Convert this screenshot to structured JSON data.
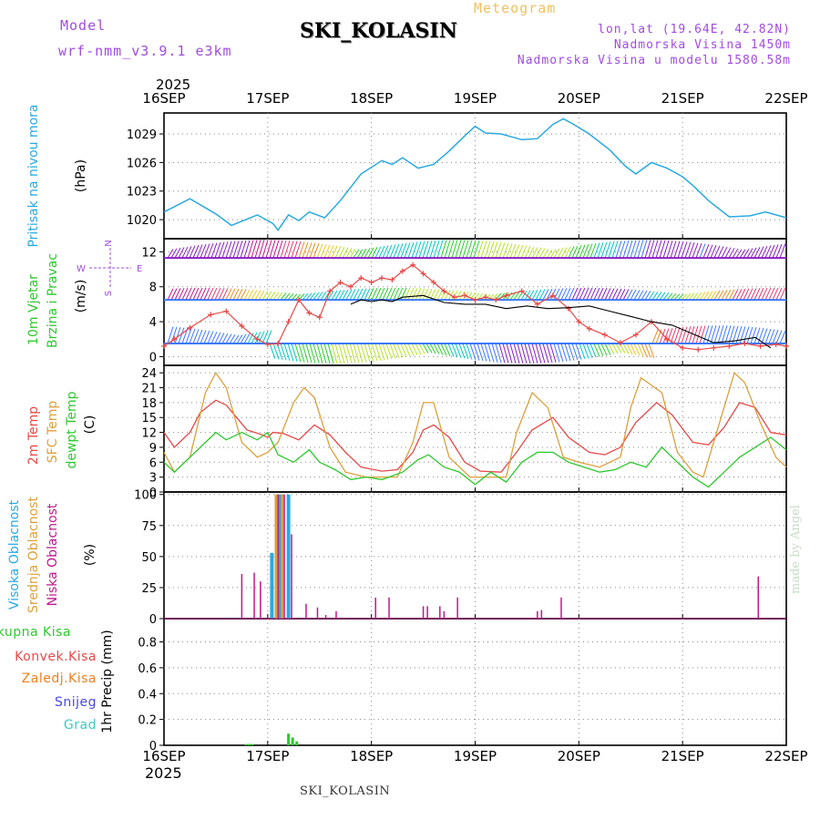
{
  "header": {
    "model_label": "Model",
    "model_name": "wrf-nmm_v3.9.1 e3km",
    "station": "SKI_KOLASIN",
    "product": "Meteogram",
    "coords": "lon,lat (19.64E, 42.82N)",
    "elevation": "Nadmorska Visina 1450m",
    "model_elevation": "Nadmorska Visina u modelu 1580.58m"
  },
  "footer": {
    "station": "SKI_KOLASIN",
    "year": "2025"
  },
  "top_axis_year": "2025",
  "credit": "made by Angel",
  "colors": {
    "pressure": "#2aa9e0",
    "wind_speed": "#e84848",
    "gust": "#000000",
    "t2m": "#e84848",
    "sfc": "#dca03c",
    "dewpt": "#2ec82e",
    "high_cloud": "#2aa9e0",
    "mid_cloud": "#dca03c",
    "low_cloud": "#c0188c",
    "total_precip": "#2ec82e",
    "conv_precip": "#e84848",
    "frozen": "#f08020",
    "snow": "#4848e0",
    "graupel": "#40c8c8",
    "axis_label": "#000000"
  },
  "chart_data": [
    {
      "type": "line",
      "panel": "pressure",
      "ylabel": "(hPa)",
      "side_labels": [
        "Pritisak na nivou mora"
      ],
      "ylim": [
        1018,
        1031.2
      ],
      "yticks": [
        1020,
        1023,
        1026,
        1029
      ],
      "x_categories": [
        "16SEP",
        "17SEP",
        "18SEP",
        "19SEP",
        "20SEP",
        "21SEP",
        "22SEP"
      ],
      "grid": true,
      "series": [
        {
          "name": "Pritisak na nivou mora",
          "x_days": [
            0,
            0.25,
            0.5,
            0.65,
            0.9,
            1.05,
            1.1,
            1.2,
            1.3,
            1.4,
            1.55,
            1.7,
            1.9,
            2.1,
            2.2,
            2.3,
            2.45,
            2.6,
            2.75,
            2.9,
            3.0,
            3.1,
            3.25,
            3.45,
            3.6,
            3.75,
            3.85,
            3.95,
            4.1,
            4.3,
            4.45,
            4.55,
            4.7,
            4.85,
            5.0,
            5.1,
            5.25,
            5.45,
            5.65,
            5.8,
            6.0
          ],
          "values": [
            1020.8,
            1022.2,
            1020.6,
            1019.4,
            1020.5,
            1019.6,
            1018.9,
            1020.5,
            1019.9,
            1020.8,
            1020.2,
            1022.0,
            1024.8,
            1026.2,
            1025.8,
            1026.5,
            1025.4,
            1025.8,
            1027.2,
            1028.8,
            1029.8,
            1029.1,
            1029.0,
            1028.4,
            1028.5,
            1030.0,
            1030.6,
            1030.0,
            1029.0,
            1027.3,
            1025.6,
            1024.8,
            1026.0,
            1025.4,
            1024.5,
            1023.6,
            1022.0,
            1020.3,
            1020.4,
            1020.8,
            1020.2
          ]
        }
      ]
    },
    {
      "type": "line",
      "panel": "wind",
      "ylabel": "(m/s)",
      "side_labels": [
        "10m Vjetar",
        "Brzina i Pravac"
      ],
      "compass_labels": {
        "n": "N",
        "s": "S",
        "w": "W",
        "e": "E",
        "top": "N",
        "bottom": "S"
      },
      "ylim": [
        -1,
        13.5
      ],
      "yticks": [
        0,
        4,
        8,
        12
      ],
      "grid": true,
      "series": [
        {
          "name": "Brzina vjetra",
          "x_days": [
            0,
            0.1,
            0.25,
            0.45,
            0.6,
            0.75,
            0.9,
            1.0,
            1.1,
            1.2,
            1.3,
            1.4,
            1.5,
            1.6,
            1.7,
            1.8,
            1.9,
            2.0,
            2.1,
            2.2,
            2.3,
            2.4,
            2.5,
            2.6,
            2.7,
            2.8,
            2.9,
            3.0,
            3.1,
            3.2,
            3.3,
            3.45,
            3.6,
            3.75,
            3.9,
            4.0,
            4.1,
            4.25,
            4.4,
            4.55,
            4.7,
            4.85,
            5.0,
            5.15,
            5.3,
            5.45,
            5.6,
            5.75,
            5.9,
            6.0
          ],
          "values": [
            1.2,
            2.0,
            3.3,
            4.8,
            5.2,
            3.5,
            2.0,
            1.4,
            1.5,
            4.0,
            6.5,
            5.0,
            4.5,
            7.5,
            8.5,
            8.0,
            9.0,
            8.5,
            9.0,
            8.8,
            9.8,
            10.5,
            9.5,
            8.5,
            7.5,
            6.8,
            7.0,
            6.5,
            6.8,
            6.5,
            7.0,
            7.5,
            6.0,
            7.0,
            5.5,
            4.0,
            3.2,
            2.5,
            1.6,
            2.5,
            4.0,
            2.0,
            1.0,
            0.8,
            1.0,
            1.2,
            1.5,
            1.2,
            1.4,
            1.2
          ]
        },
        {
          "name": "Udari vjetra",
          "x_days": [
            1.8,
            1.9,
            2.0,
            2.1,
            2.2,
            2.3,
            2.5,
            2.7,
            2.9,
            3.1,
            3.3,
            3.5,
            3.7,
            3.9,
            4.1,
            4.3,
            4.5,
            4.7,
            4.9,
            5.1,
            5.3,
            5.5,
            5.7,
            5.85
          ],
          "values": [
            6.0,
            6.5,
            6.3,
            6.5,
            6.3,
            6.8,
            7.0,
            6.2,
            6.0,
            6.0,
            5.5,
            5.8,
            5.5,
            5.6,
            5.8,
            5.2,
            4.6,
            4.0,
            3.6,
            2.6,
            1.6,
            1.8,
            2.2,
            1.0
          ]
        }
      ],
      "barb_rows": [
        {
          "speed": 11.3,
          "color": "#8c1ec8"
        },
        {
          "speed": 6.5,
          "color": "#3c78ff"
        },
        {
          "speed": 1.5,
          "color": "#3c78ff"
        }
      ]
    },
    {
      "type": "line",
      "panel": "temperature",
      "ylabel": "(C)",
      "side_labels": [
        "2m Temp",
        "SFC Temp",
        "dewpt Temp"
      ],
      "ylim": [
        0,
        25.5
      ],
      "yticks": [
        0,
        3,
        6,
        9,
        12,
        15,
        18,
        21,
        24
      ],
      "grid": true,
      "series": [
        {
          "name": "2m Temp",
          "x_days": [
            0,
            0.1,
            0.25,
            0.35,
            0.5,
            0.6,
            0.8,
            0.95,
            1.0,
            1.05,
            1.15,
            1.3,
            1.45,
            1.6,
            1.75,
            1.9,
            2.1,
            2.25,
            2.4,
            2.5,
            2.6,
            2.75,
            2.9,
            3.05,
            3.25,
            3.4,
            3.55,
            3.75,
            3.9,
            4.1,
            4.25,
            4.4,
            4.55,
            4.75,
            4.9,
            5.1,
            5.25,
            5.4,
            5.55,
            5.7,
            5.85,
            6.0
          ],
          "values": [
            12.0,
            9.0,
            12.0,
            16.0,
            18.5,
            17.5,
            12.5,
            11.5,
            11.0,
            12.0,
            11.8,
            10.5,
            13.5,
            11.5,
            8.0,
            5.0,
            4.2,
            4.5,
            8.0,
            12.5,
            13.5,
            11.0,
            6.0,
            4.2,
            4.0,
            8.0,
            12.5,
            15.0,
            11.0,
            8.0,
            7.5,
            9.0,
            14.0,
            18.0,
            15.5,
            10.0,
            9.5,
            13.0,
            18.0,
            17.0,
            12.0,
            11.5
          ]
        },
        {
          "name": "SFC Temp",
          "x_days": [
            0,
            0.1,
            0.25,
            0.4,
            0.5,
            0.6,
            0.75,
            0.9,
            1.0,
            1.1,
            1.25,
            1.35,
            1.45,
            1.6,
            1.75,
            1.95,
            2.1,
            2.25,
            2.4,
            2.5,
            2.6,
            2.75,
            2.95,
            3.1,
            3.3,
            3.4,
            3.55,
            3.7,
            3.85,
            4.0,
            4.2,
            4.4,
            4.5,
            4.6,
            4.8,
            4.95,
            5.1,
            5.2,
            5.4,
            5.5,
            5.6,
            5.75,
            5.9,
            6.0
          ],
          "values": [
            8.0,
            4.0,
            7.0,
            20.0,
            24.0,
            21.0,
            10.0,
            7.0,
            8.0,
            10.0,
            18.0,
            21.0,
            19.0,
            9.0,
            4.0,
            3.0,
            3.0,
            3.0,
            10.0,
            18.0,
            18.0,
            7.0,
            3.0,
            3.0,
            3.0,
            12.0,
            20.0,
            17.0,
            7.0,
            6.0,
            5.0,
            7.0,
            17.0,
            23.0,
            20.0,
            8.0,
            4.0,
            3.0,
            17.0,
            24.0,
            22.0,
            14.0,
            7.0,
            5.0
          ]
        },
        {
          "name": "dewpt Temp",
          "x_days": [
            0,
            0.1,
            0.25,
            0.4,
            0.5,
            0.6,
            0.75,
            0.9,
            1.0,
            1.1,
            1.25,
            1.4,
            1.5,
            1.65,
            1.8,
            1.95,
            2.1,
            2.3,
            2.45,
            2.55,
            2.7,
            2.85,
            3.0,
            3.15,
            3.3,
            3.45,
            3.6,
            3.75,
            3.9,
            4.05,
            4.2,
            4.35,
            4.5,
            4.65,
            4.8,
            4.95,
            5.1,
            5.25,
            5.4,
            5.55,
            5.7,
            5.85,
            6.0
          ],
          "values": [
            6.0,
            4.0,
            7.0,
            10.0,
            12.0,
            10.5,
            12.0,
            10.5,
            12.0,
            7.5,
            6.0,
            8.5,
            6.0,
            4.5,
            2.5,
            3.0,
            2.5,
            4.0,
            6.5,
            7.5,
            5.0,
            4.0,
            1.5,
            4.0,
            2.0,
            6.0,
            8.0,
            8.0,
            6.0,
            5.0,
            4.0,
            4.5,
            6.0,
            5.0,
            9.0,
            6.0,
            3.0,
            1.0,
            4.0,
            7.0,
            9.0,
            11.0,
            8.5
          ]
        }
      ]
    },
    {
      "type": "bar",
      "panel": "clouds",
      "ylabel": "(%)",
      "side_labels": [
        "Visoka Oblacnost",
        "Srednja Oblacnost",
        "Niska Oblacnost"
      ],
      "ylim": [
        0,
        102
      ],
      "yticks": [
        0,
        25,
        50,
        75,
        100
      ],
      "grid": true,
      "series": [
        {
          "name": "Visoka Oblacnost",
          "x_days": [
            1.04,
            1.12,
            1.2
          ],
          "values": [
            53,
            100,
            100
          ]
        },
        {
          "name": "Srednja Oblacnost",
          "x_days": [
            1.08,
            1.14
          ],
          "values": [
            100,
            100
          ]
        },
        {
          "name": "Niska Oblacnost",
          "x_days": [
            0.75,
            0.87,
            0.93,
            1.1,
            1.16,
            1.23,
            1.37,
            1.48,
            1.56,
            1.66,
            2.04,
            2.17,
            2.5,
            2.54,
            2.66,
            2.7,
            2.83,
            3.6,
            3.64,
            3.83,
            5.73
          ],
          "values": [
            36,
            37,
            30,
            100,
            100,
            68,
            12,
            9,
            3,
            6,
            17,
            17,
            10,
            10,
            10,
            6,
            17,
            6,
            7,
            17,
            34
          ]
        }
      ]
    },
    {
      "type": "bar",
      "panel": "precip",
      "ylabel": "1hr Precip (mm)",
      "side_labels": [
        "Ukupna Kisa",
        "Konvek.Kisa",
        "Zaledj.Kisa",
        "Snijeg",
        "Grad"
      ],
      "ylim": [
        0,
        0.98
      ],
      "yticks": [
        0,
        0.2,
        0.4,
        0.6,
        0.8
      ],
      "xlim": [
        0,
        6
      ],
      "grid": true,
      "series": [
        {
          "name": "Ukupna Kisa",
          "x_days": [
            0.79,
            0.82,
            0.85,
            1.2,
            1.24,
            1.28
          ],
          "values": [
            0.01,
            0.01,
            0.01,
            0.09,
            0.06,
            0.03
          ]
        },
        {
          "name": "Konvek.Kisa",
          "x_days": [],
          "values": []
        },
        {
          "name": "Zaledj.Kisa",
          "x_days": [],
          "values": []
        },
        {
          "name": "Snijeg",
          "x_days": [],
          "values": []
        },
        {
          "name": "Grad",
          "x_days": [],
          "values": []
        }
      ]
    }
  ]
}
